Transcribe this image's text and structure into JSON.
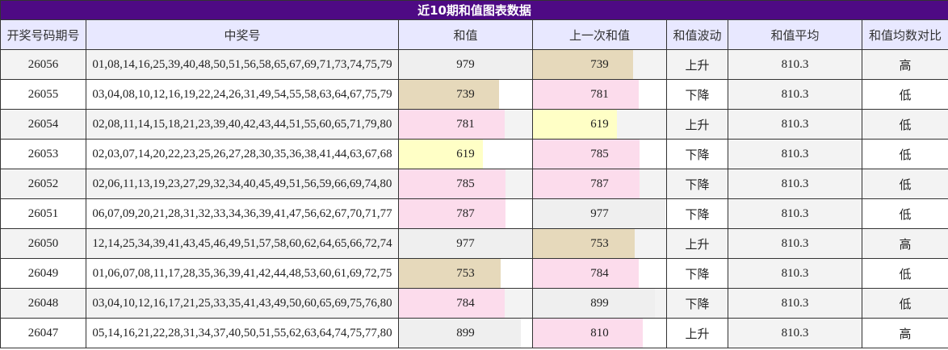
{
  "title": "近10期和值图表数据",
  "table": {
    "headers": [
      "开奖号码期号",
      "中奖号",
      "和值",
      "上一次和值",
      "和值波动",
      "和值平均",
      "和值均数对比"
    ],
    "rows": [
      [
        26056,
        "01,08,14,16,25,39,40,48,50,51,56,58,65,67,69,71,73,74,75,79",
        979,
        739,
        "上升",
        810.3,
        "高"
      ],
      [
        26055,
        "03,04,08,10,12,16,19,22,24,26,31,49,54,55,58,63,64,67,75,79",
        739,
        781,
        "下降",
        810.3,
        "低"
      ],
      [
        26054,
        "02,08,11,14,15,18,21,23,39,40,42,43,44,51,55,60,65,71,79,80",
        781,
        619,
        "上升",
        810.3,
        "低"
      ],
      [
        26053,
        "02,03,07,14,20,22,23,25,26,27,28,30,35,36,38,41,44,63,67,68",
        619,
        785,
        "下降",
        810.3,
        "低"
      ],
      [
        26052,
        "02,06,11,13,19,23,27,29,32,34,40,45,49,51,56,59,66,69,74,80",
        785,
        787,
        "下降",
        810.3,
        "低"
      ],
      [
        26051,
        "06,07,09,20,21,28,31,32,33,34,36,39,41,47,56,62,67,70,71,77",
        787,
        977,
        "下降",
        810.3,
        "低"
      ],
      [
        26050,
        "12,14,25,34,39,41,43,45,46,49,51,57,58,60,62,64,65,66,72,74",
        977,
        753,
        "上升",
        810.3,
        "高"
      ],
      [
        26049,
        "01,06,07,08,11,17,28,35,36,39,41,42,44,48,53,60,61,69,72,75",
        753,
        784,
        "下降",
        810.3,
        "低"
      ],
      [
        26048,
        "03,04,10,12,16,17,21,25,33,35,41,43,49,50,60,65,69,75,76,80",
        784,
        899,
        "下降",
        810.3,
        "低"
      ],
      [
        26047,
        "05,14,16,21,22,28,31,34,37,40,50,51,55,62,63,64,74,75,77,80",
        899,
        810,
        "上升",
        810.3,
        "高"
      ]
    ],
    "bar_colors": [
      [
        "#efefef",
        "#e6d9bb"
      ],
      [
        "#e6d9bb",
        "#fcdcec"
      ],
      [
        "#fcdcec",
        "#ffffc6"
      ],
      [
        "#ffffc6",
        "#fcdcec"
      ],
      [
        "#fcdcec",
        "#fcdcec"
      ],
      [
        "#fcdcec",
        "#efefef"
      ],
      [
        "#efefef",
        "#e6d9bb"
      ],
      [
        "#e6d9bb",
        "#fcdcec"
      ],
      [
        "#fcdcec",
        "#efefef"
      ],
      [
        "#efefef",
        "#fcdcec"
      ]
    ]
  }
}
